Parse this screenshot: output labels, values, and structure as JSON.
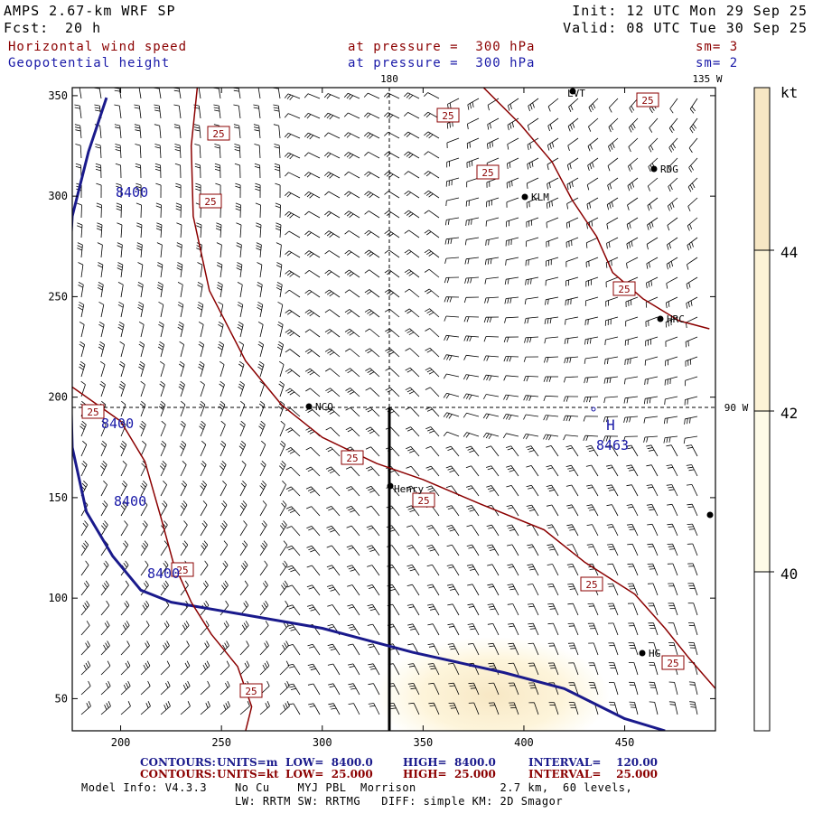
{
  "header": {
    "model_title": "AMPS 2.67-km WRF SP",
    "forecast_label": "Fcst:",
    "forecast_hours": "20 h",
    "init_time": "Init: 12 UTC Mon 29 Sep 25",
    "valid_time": "Valid: 08 UTC Tue 30 Sep 25",
    "field1_name": "Horizontal wind speed",
    "field1_level": "at pressure =  300 hPa",
    "field1_smooth": "sm= 3",
    "field2_name": "Geopotential height",
    "field2_level": "at pressure =  300 hPa",
    "field2_smooth": "sm= 2"
  },
  "map": {
    "meridian_180": "180",
    "meridian_135w": "135 W",
    "meridian_90w": "90 W",
    "stations": [
      "LVT",
      "RDG",
      "KLM",
      "HRC",
      "NCO",
      "Henry",
      "HG"
    ],
    "high_marker": "H",
    "high_value": "8463",
    "contour_labels_height": [
      "8400",
      "8400",
      "8400",
      "8400"
    ],
    "contour_labels_wind": [
      "25",
      "25",
      "25",
      "25",
      "25",
      "25",
      "25",
      "25",
      "25",
      "25",
      "25",
      "25",
      "25"
    ]
  },
  "colors": {
    "wind_contour": "#8b0000",
    "height_contour": "#1a1a8c",
    "shading_low": "#fdf6d8",
    "shading_high": "#f7e7c4"
  },
  "colorbar": {
    "unit": "kt",
    "levels": [
      "44",
      "42",
      "40"
    ],
    "level_values": [
      44,
      42,
      40
    ],
    "range": [
      38,
      46
    ]
  },
  "chart_data": {
    "type": "contour",
    "title": "Horizontal wind speed / Geopotential height at 300 hPa",
    "x_ticks": [
      200,
      250,
      300,
      350,
      400,
      450
    ],
    "y_ticks": [
      50,
      100,
      150,
      200,
      250,
      300,
      350
    ],
    "xlim": [
      176,
      495
    ],
    "ylim": [
      34,
      354
    ],
    "series": [
      {
        "name": "Geopotential height 8400 m",
        "points": [
          [
            193,
            349
          ],
          [
            184,
            322
          ],
          [
            176,
            290
          ],
          [
            174,
            255
          ],
          [
            175,
            212
          ],
          [
            176,
            175
          ],
          [
            183,
            143
          ],
          [
            196,
            121
          ],
          [
            210,
            104
          ],
          [
            225,
            98
          ],
          [
            260,
            92
          ],
          [
            300,
            85
          ],
          [
            345,
            73
          ],
          [
            390,
            63
          ],
          [
            420,
            55
          ],
          [
            450,
            40
          ],
          [
            470,
            34
          ]
        ]
      },
      {
        "name": "Wind speed 25 kt (west)",
        "points": [
          [
            238,
            354
          ],
          [
            235,
            325
          ],
          [
            236,
            290
          ],
          [
            244,
            253
          ],
          [
            262,
            218
          ],
          [
            280,
            196
          ],
          [
            300,
            180
          ],
          [
            327,
            167
          ],
          [
            350,
            159
          ],
          [
            378,
            147
          ],
          [
            410,
            134
          ],
          [
            430,
            118
          ],
          [
            455,
            102
          ],
          [
            470,
            85
          ],
          [
            482,
            70
          ],
          [
            495,
            55
          ]
        ]
      },
      {
        "name": "Wind speed 25 kt (east)",
        "points": [
          [
            380,
            354
          ],
          [
            398,
            336
          ],
          [
            414,
            317
          ],
          [
            424,
            298
          ],
          [
            436,
            280
          ],
          [
            444,
            262
          ],
          [
            459,
            249
          ],
          [
            477,
            238
          ],
          [
            492,
            234
          ]
        ]
      },
      {
        "name": "Wind speed 25 kt (southwest)",
        "points": [
          [
            176,
            205
          ],
          [
            200,
            188
          ],
          [
            212,
            168
          ],
          [
            220,
            140
          ],
          [
            226,
            118
          ],
          [
            235,
            98
          ],
          [
            245,
            82
          ],
          [
            258,
            66
          ],
          [
            265,
            46
          ],
          [
            262,
            34
          ]
        ]
      }
    ],
    "high": {
      "label": "H",
      "value": 8463,
      "x": 445,
      "y": 190
    },
    "shading": {
      "region": "south-center",
      "min_kt": 40,
      "max_kt": 42
    }
  },
  "footer": {
    "contours1_label": "CONTOURS:",
    "contours1_units": "UNITS=m",
    "contours1_low": "LOW=  8400.0",
    "contours1_high": "HIGH=  8400.0",
    "contours1_interval": "INTERVAL=    120.00",
    "contours2_label": "CONTOURS:",
    "contours2_units": "UNITS=kt",
    "contours2_low": "LOW=  25.000",
    "contours2_high": "HIGH=  25.000",
    "contours2_interval": "INTERVAL=    25.000",
    "model_info_line1": "Model Info: V4.3.3    No Cu    MYJ PBL  Morrison            2.7 km,  60 levels,",
    "model_info_line2": "LW: RRTM SW: RRTMG   DIFF: simple KM: 2D Smagor"
  }
}
